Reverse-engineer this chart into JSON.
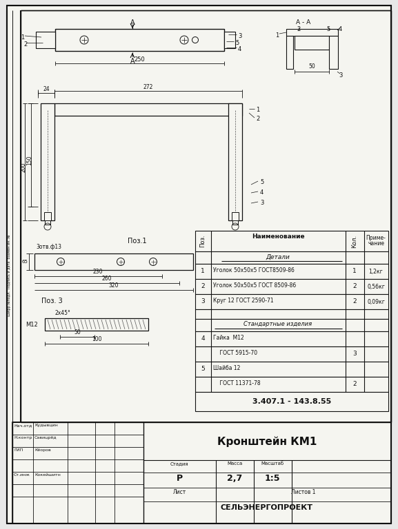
{
  "title": "Кронштейн КМ1",
  "doc_number": "3.407.1 - 143.8.55",
  "stage": "Р",
  "mass": "2,7",
  "scale": "1:5",
  "sheet": "Лист",
  "sheets": "Листов 1",
  "company": "СЕЛЬЭНЕРГОПРОЕКТ",
  "rows_details": [
    {
      "pos": "1",
      "name": "Уголок 50х50х5 ГОСТ8509-86",
      "qty": "1",
      "note": "1,2кг"
    },
    {
      "pos": "2",
      "name": "Уголок 50х50х5 ГОСТ 8509-86",
      "qty": "2",
      "note": "0,56кг"
    },
    {
      "pos": "3",
      "name": "Круг 12 ГОСТ 2590-71",
      "qty": "2",
      "note": "0,09кг"
    }
  ],
  "rows_standard": [
    {
      "pos": "4",
      "name": "Гайка  М12",
      "qty": "",
      "note": ""
    },
    {
      "pos": "",
      "name": "    ГОСТ 5915-70",
      "qty": "3",
      "note": ""
    },
    {
      "pos": "5",
      "name": "Шайба 12",
      "qty": "",
      "note": ""
    },
    {
      "pos": "",
      "name": "    ГОСТ 11371-78",
      "qty": "2",
      "note": ""
    }
  ],
  "stamp_labels": [
    "Нач.отд",
    "Н.контр",
    "ГИП",
    "",
    "Ст.инж"
  ],
  "stamp_names": [
    "Кудывцин",
    "Савицрёд",
    "Кёоров",
    "",
    "Кокейшитн"
  ],
  "bg_color": "#e8e8e8",
  "paper_color": "#f5f5f0",
  "line_color": "#111111",
  "draw_color": "#111111"
}
